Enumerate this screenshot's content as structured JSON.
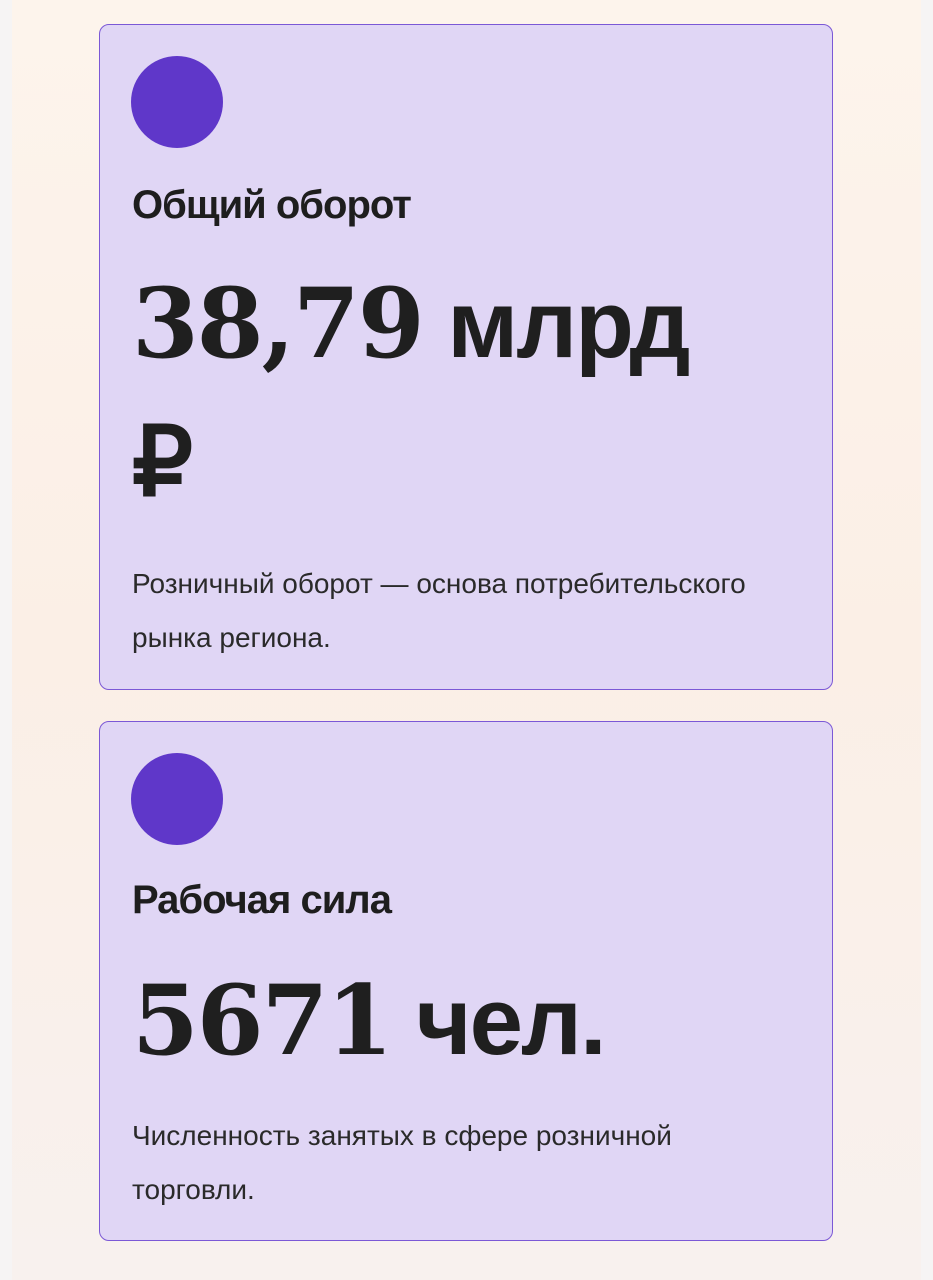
{
  "cards": [
    {
      "title": "Общий оборот",
      "value_number": "38,79",
      "value_unit": "млрд ₽",
      "description": "Розничный оборот — основа потребительского рынка региона."
    },
    {
      "title": "Рабочая сила",
      "value_number": "5671",
      "value_unit": "чел.",
      "description": "Численность занятых в сфере розничной торговли."
    }
  ],
  "colors": {
    "accent": "#5f37c9",
    "card_bg": "#e0d6f5",
    "card_border": "#7b58d6"
  }
}
